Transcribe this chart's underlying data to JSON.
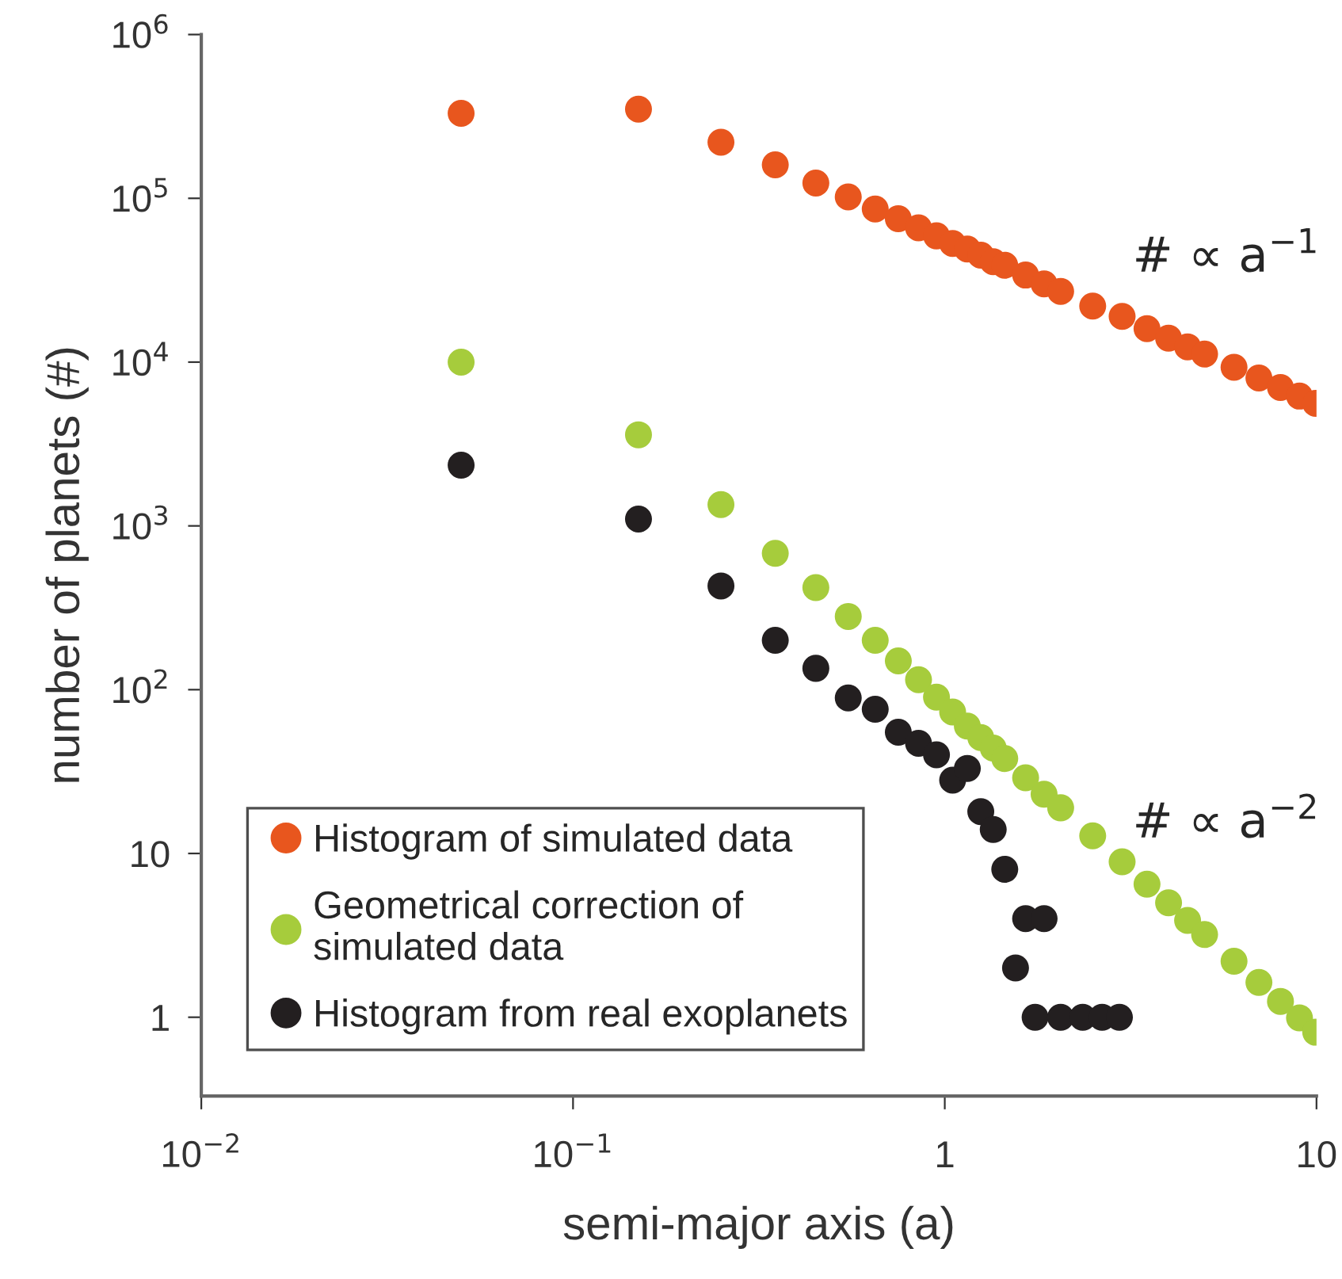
{
  "chart_data": {
    "type": "scatter",
    "xlabel": "semi-major axis (a)",
    "ylabel": "number of planets (#)",
    "log": "xy",
    "marker": "circle",
    "grid": false,
    "legend": "bottom left",
    "xlim": [
      0.01,
      10
    ],
    "xticks": [
      {
        "value": 0.01,
        "label": "10$^{−2}$"
      },
      {
        "value": 0.1,
        "label": "10$^{−1}$"
      },
      1,
      10
    ],
    "ylim": [
      0.33,
      1000000
    ],
    "yticks": [
      1,
      10,
      {
        "value": 100,
        "label": "10$^{2}$"
      },
      {
        "value": 1000,
        "label": "10$^{3}$"
      },
      {
        "value": 10000,
        "label": "10$^{4}$"
      },
      {
        "value": 100000,
        "label": "10$^{5}$"
      },
      {
        "value": 1000000,
        "label": "10$^{6}$"
      }
    ],
    "annotations": [
      "# ∝ a$^{−1}$",
      "# ∝ a$^{−2}$"
    ],
    "series": [
      {
        "name": "Histogram of simulated data",
        "color": "#e8561e",
        "x": [
          0.05,
          0.15,
          0.25,
          0.35,
          0.45,
          0.55,
          0.65,
          0.75,
          0.85,
          0.95,
          1.05,
          1.15,
          1.25,
          1.35,
          1.45,
          1.65,
          1.85,
          2.05,
          2.5,
          3,
          3.5,
          4,
          4.5,
          5,
          6,
          7,
          8,
          9,
          9.95
        ],
        "values": [
          330000,
          350000,
          220000,
          160000,
          124000,
          102000,
          86000,
          75000,
          66000,
          59000,
          53000,
          49000,
          45000,
          41000,
          39000,
          34000,
          30000,
          27000,
          22000,
          19000,
          16000,
          14000,
          12400,
          11200,
          9300,
          8000,
          7000,
          6200,
          5600
        ]
      },
      {
        "name": "Geometrical correction of\nsimulated data",
        "color": "#a6cc3c",
        "x": [
          0.05,
          0.15,
          0.25,
          0.35,
          0.45,
          0.55,
          0.65,
          0.75,
          0.85,
          0.95,
          1.05,
          1.15,
          1.25,
          1.35,
          1.45,
          1.65,
          1.85,
          2.05,
          2.5,
          3,
          3.5,
          4,
          4.5,
          5,
          6,
          7,
          8,
          9,
          9.95
        ],
        "values": [
          10000,
          3600,
          1350,
          680,
          420,
          280,
          200,
          150,
          115,
          90,
          73,
          60,
          51,
          44,
          38,
          29,
          23,
          19,
          12.8,
          8.9,
          6.5,
          5.0,
          3.9,
          3.2,
          2.2,
          1.63,
          1.25,
          0.99,
          0.81
        ]
      },
      {
        "name": "Histogram from real exoplanets",
        "color": "#231f20",
        "x": [
          0.05,
          0.15,
          0.25,
          0.35,
          0.45,
          0.55,
          0.65,
          0.75,
          0.85,
          0.95,
          1.05,
          1.15,
          1.25,
          1.35,
          1.45,
          1.55,
          1.65,
          1.75,
          1.85,
          2.05,
          2.35,
          2.65,
          2.95
        ],
        "values": [
          2350,
          1100,
          430,
          200,
          135,
          89,
          76,
          55,
          47,
          40,
          28,
          33,
          18,
          14,
          8,
          2,
          4,
          1,
          4,
          1,
          1,
          1,
          1
        ]
      }
    ]
  }
}
